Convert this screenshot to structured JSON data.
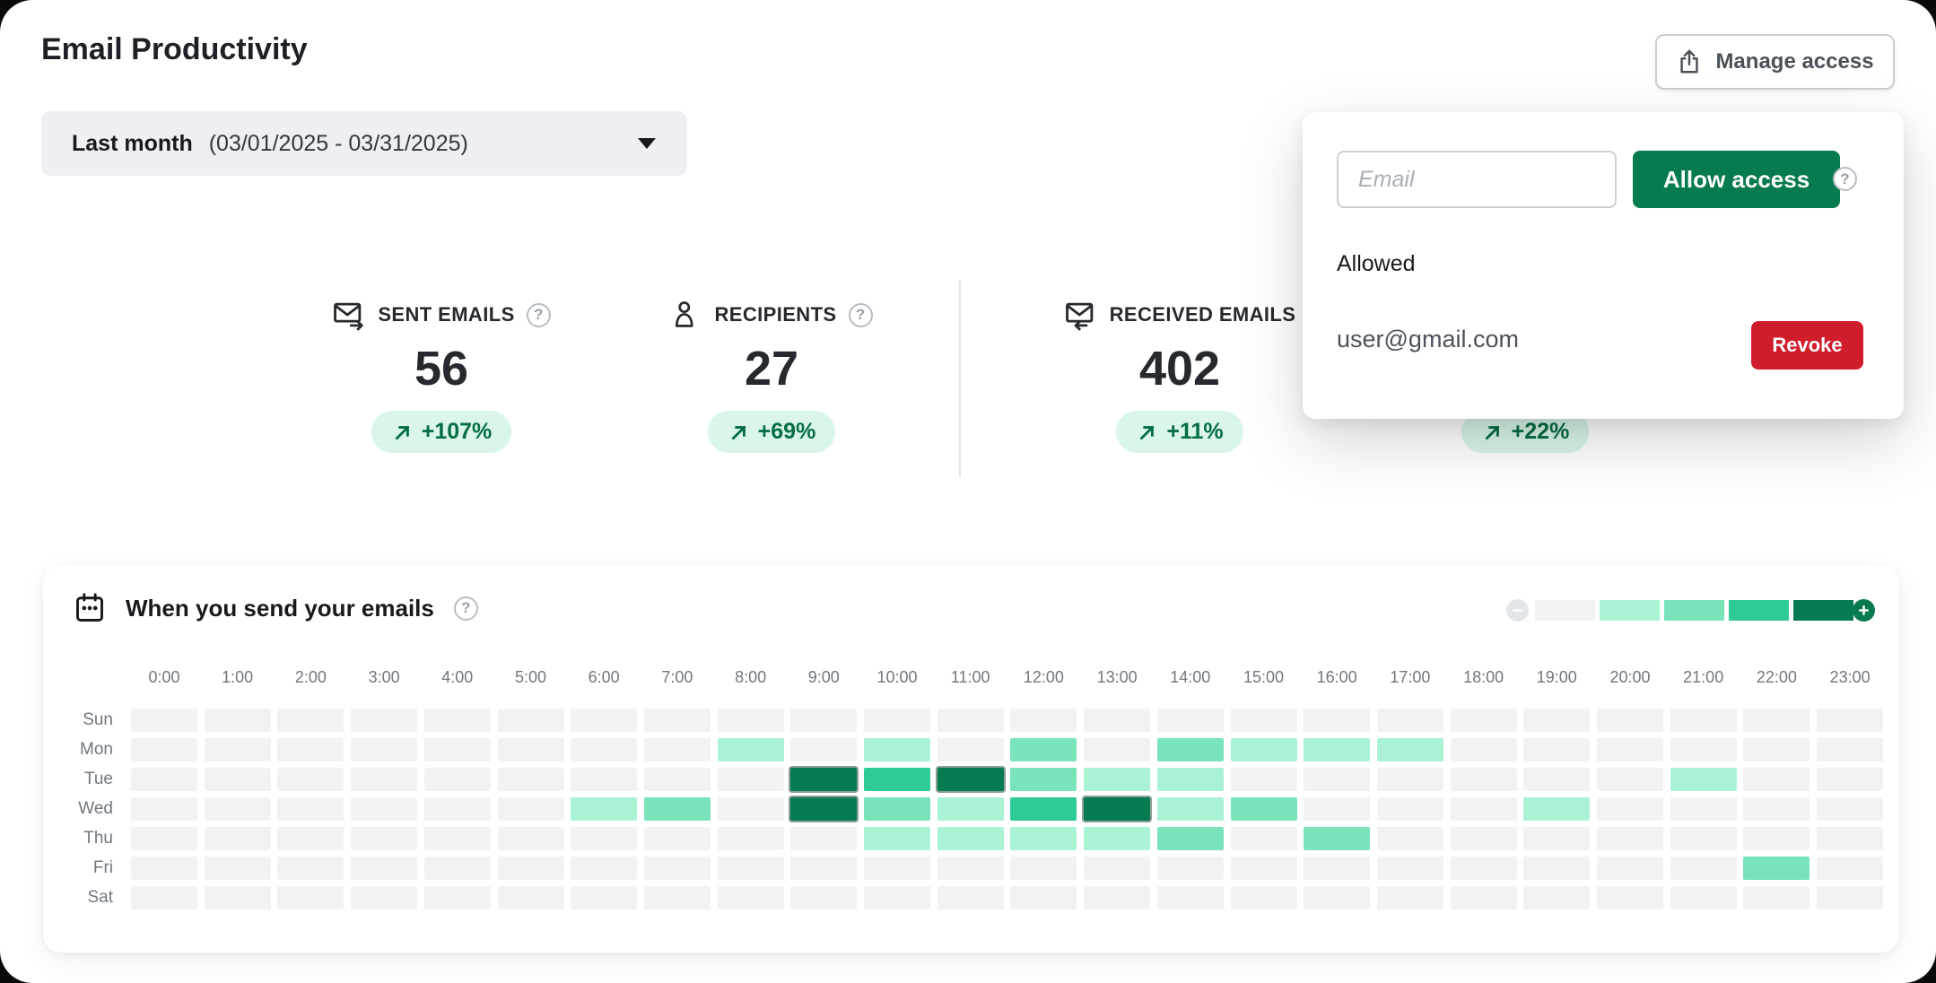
{
  "page": {
    "title": "Email Productivity"
  },
  "date_filter": {
    "label": "Last month",
    "range": "(03/01/2025 - 03/31/2025)"
  },
  "manage_access": {
    "label": "Manage access"
  },
  "icons": {
    "help": "?"
  },
  "theme": {
    "accent_green": "#077a4e",
    "danger_red": "#d01d2c",
    "badge_bg": "#d9f6e9",
    "badge_text": "#056c46"
  },
  "access_panel": {
    "email_placeholder": "Email",
    "allow_button": "Allow access",
    "allowed_heading": "Allowed",
    "allowed_users": [
      {
        "email": "user@gmail.com",
        "revoke_label": "Revoke"
      }
    ]
  },
  "stats": [
    {
      "icon": "mail-sent-icon",
      "label": "SENT EMAILS",
      "value": "56",
      "change": "+107%"
    },
    {
      "icon": "person-icon",
      "label": "RECIPIENTS",
      "value": "27",
      "change": "+69%"
    },
    {
      "icon": "mail-received-icon",
      "label": "RECEIVED EMAILS",
      "value": "402",
      "change": "+11%"
    },
    {
      "change": "+22%"
    }
  ],
  "chart_data": {
    "type": "heatmap",
    "title": "When you send your emails",
    "x_labels": [
      "0:00",
      "1:00",
      "2:00",
      "3:00",
      "4:00",
      "5:00",
      "6:00",
      "7:00",
      "8:00",
      "9:00",
      "10:00",
      "11:00",
      "12:00",
      "13:00",
      "14:00",
      "15:00",
      "16:00",
      "17:00",
      "18:00",
      "19:00",
      "20:00",
      "21:00",
      "22:00",
      "23:00"
    ],
    "y_labels": [
      "Sun",
      "Mon",
      "Tue",
      "Wed",
      "Thu",
      "Fri",
      "Sat"
    ],
    "levels": [
      [
        0,
        0,
        0,
        0,
        0,
        0,
        0,
        0,
        0,
        0,
        0,
        0,
        0,
        0,
        0,
        0,
        0,
        0,
        0,
        0,
        0,
        0,
        0,
        0
      ],
      [
        0,
        0,
        0,
        0,
        0,
        0,
        0,
        0,
        1,
        0,
        1,
        0,
        2,
        0,
        2,
        1,
        1,
        1,
        0,
        0,
        0,
        0,
        0,
        0
      ],
      [
        0,
        0,
        0,
        0,
        0,
        0,
        0,
        0,
        0,
        4,
        3,
        4,
        2,
        1,
        1,
        0,
        0,
        0,
        0,
        0,
        0,
        1,
        0,
        0
      ],
      [
        0,
        0,
        0,
        0,
        0,
        0,
        1,
        2,
        0,
        4,
        2,
        1,
        3,
        4,
        1,
        2,
        0,
        0,
        0,
        1,
        0,
        0,
        0,
        0
      ],
      [
        0,
        0,
        0,
        0,
        0,
        0,
        0,
        0,
        0,
        0,
        1,
        1,
        1,
        1,
        2,
        0,
        2,
        0,
        0,
        0,
        0,
        0,
        0,
        0
      ],
      [
        0,
        0,
        0,
        0,
        0,
        0,
        0,
        0,
        0,
        0,
        0,
        0,
        0,
        0,
        0,
        0,
        0,
        0,
        0,
        0,
        0,
        0,
        2,
        0
      ],
      [
        0,
        0,
        0,
        0,
        0,
        0,
        0,
        0,
        0,
        0,
        0,
        0,
        0,
        0,
        0,
        0,
        0,
        0,
        0,
        0,
        0,
        0,
        0,
        0
      ]
    ],
    "level_colors": [
      "#f0f2f4",
      "#a9f2d3",
      "#79e3ba",
      "#2fcb94",
      "#067a50"
    ],
    "legend_position": "top-right",
    "grid": false
  }
}
